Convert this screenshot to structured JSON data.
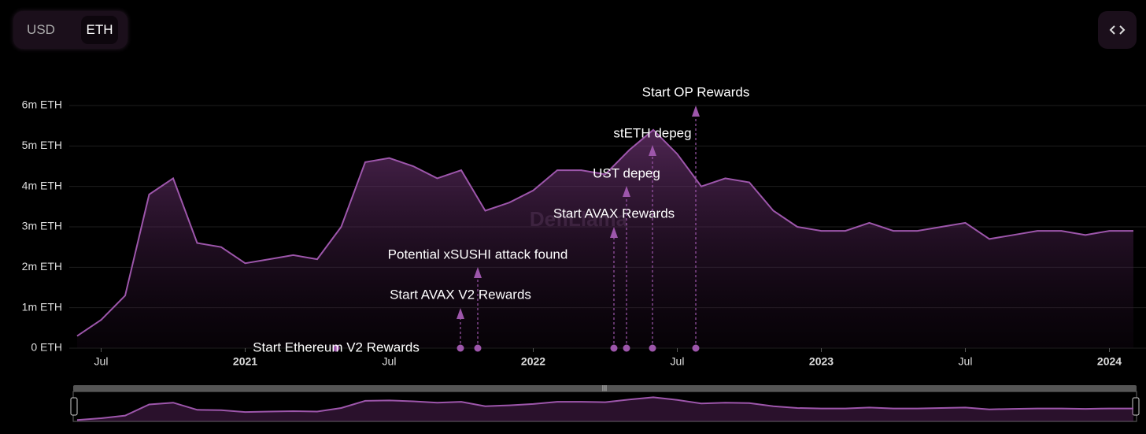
{
  "toggle": [
    "USD",
    "ETH"
  ],
  "chart_data": {
    "type": "area",
    "watermark": "DefiLlama",
    "x": [
      "2020-06",
      "2020-07",
      "2020-08",
      "2020-09",
      "2020-10",
      "2020-11",
      "2020-12",
      "2021-01",
      "2021-02",
      "2021-03",
      "2021-04",
      "2021-05",
      "2021-06",
      "2021-07",
      "2021-08",
      "2021-09",
      "2021-10",
      "2021-11",
      "2021-12",
      "2022-01",
      "2022-02",
      "2022-03",
      "2022-04",
      "2022-05",
      "2022-06",
      "2022-07",
      "2022-08",
      "2022-09",
      "2022-10",
      "2022-11",
      "2022-12",
      "2023-01",
      "2023-02",
      "2023-03",
      "2023-04",
      "2023-05",
      "2023-06",
      "2023-07",
      "2023-08",
      "2023-09",
      "2023-10",
      "2023-11",
      "2023-12",
      "2024-01",
      "2024-02"
    ],
    "series": [
      {
        "color": "#9d56ab",
        "values": [
          0.3,
          0.7,
          1.3,
          3.8,
          4.2,
          2.6,
          2.5,
          2.1,
          2.2,
          2.3,
          2.2,
          3.0,
          4.6,
          4.7,
          4.5,
          4.2,
          4.4,
          3.4,
          3.6,
          3.9,
          4.4,
          4.4,
          4.3,
          4.9,
          5.4,
          4.8,
          4.0,
          4.2,
          4.1,
          3.4,
          3.0,
          2.9,
          2.9,
          3.1,
          2.9,
          2.9,
          3.0,
          3.1,
          2.7,
          2.8,
          2.9,
          2.9,
          2.8,
          2.9,
          2.9
        ]
      }
    ],
    "xlim": [
      "2020-06",
      "2024-02"
    ],
    "xticks": [
      {
        "value": "2020-07",
        "label": "Jul"
      },
      {
        "value": "2021-01",
        "label": "2021"
      },
      {
        "value": "2021-07",
        "label": "Jul"
      },
      {
        "value": "2022-01",
        "label": "2022"
      },
      {
        "value": "2022-07",
        "label": "Jul"
      },
      {
        "value": "2023-01",
        "label": "2023"
      },
      {
        "value": "2023-07",
        "label": "Jul"
      },
      {
        "value": "2024-01",
        "label": "2024"
      }
    ],
    "ylim": [
      0,
      6
    ],
    "yticks": [
      {
        "value": 0,
        "label": "0 ETH"
      },
      {
        "value": 1,
        "label": "1m ETH"
      },
      {
        "value": 2,
        "label": "2m ETH"
      },
      {
        "value": 3,
        "label": "3m ETH"
      },
      {
        "value": 4,
        "label": "4m ETH"
      },
      {
        "value": 5,
        "label": "5m ETH"
      },
      {
        "value": 6,
        "label": "6m ETH"
      }
    ],
    "grid": true,
    "annotations": [
      {
        "label": "Start Ethereum V2 Rewards"
      },
      {
        "label": "Start AVAX V2 Rewards"
      },
      {
        "label": "Potential xSUSHI attack found"
      },
      {
        "label": "Start AVAX Rewards"
      },
      {
        "label": "UST depeg"
      },
      {
        "label": "stETH depeg"
      },
      {
        "label": "Start OP Rewards"
      }
    ]
  }
}
